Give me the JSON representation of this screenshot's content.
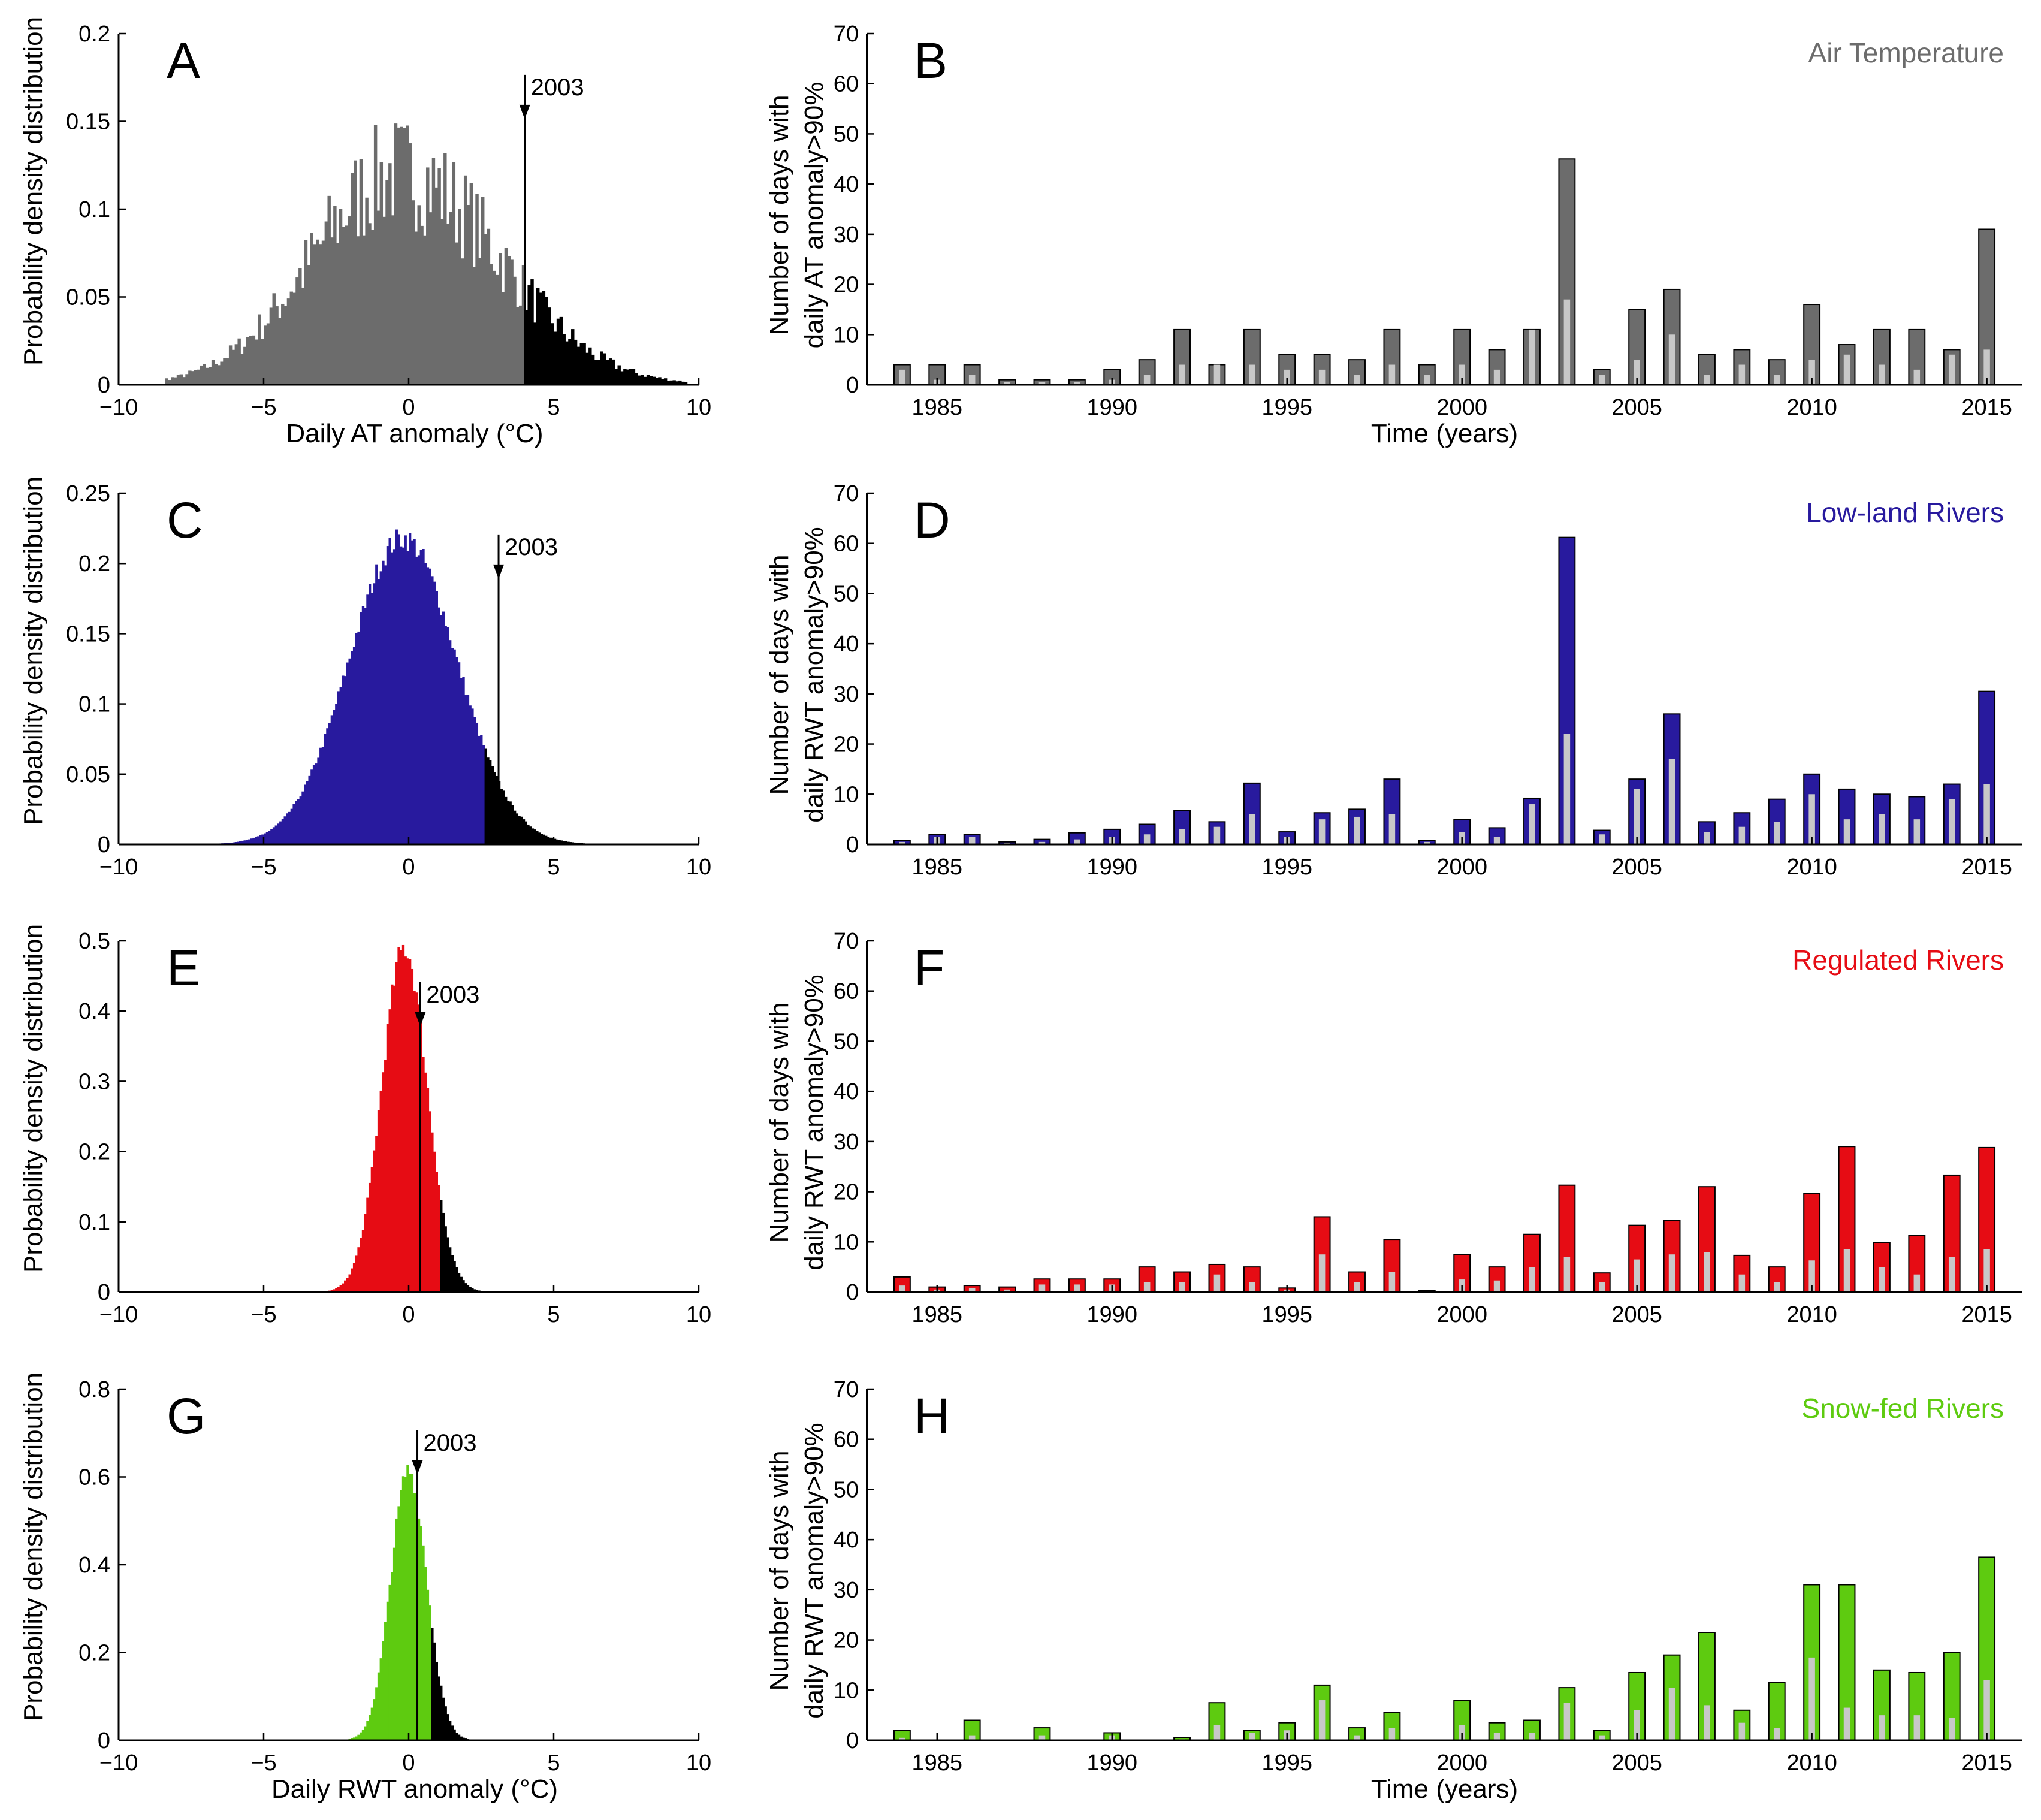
{
  "colors": {
    "air": "#6c6c6c",
    "lowland": "#281a9e",
    "regulated": "#e60c14",
    "snowfed": "#5ecb10",
    "tail": "#000000",
    "light_bar": "#c8c8c8"
  },
  "chart_data": [
    {
      "id": "A",
      "type": "bar",
      "panel_letter": "A",
      "ylabel": "Probability density distribution",
      "xlabel": "Daily AT anomaly (°C)",
      "xlim": [
        -10,
        10
      ],
      "ylim": [
        0,
        0.2
      ],
      "xticks": [
        -10,
        -5,
        0,
        5,
        10
      ],
      "xtick_labels": [
        "−10",
        "−5",
        "0",
        "5",
        "10"
      ],
      "yticks": [
        0,
        0.05,
        0.1,
        0.15,
        0.2
      ],
      "ytick_labels": [
        "0",
        "0.05",
        "0.1",
        "0.15",
        "0.2"
      ],
      "dist": "at",
      "center": -0.3,
      "peak": 0.155,
      "threshold": 4.0,
      "marker_x": 4.0,
      "marker_label": "2003",
      "color_key": "air"
    },
    {
      "id": "B",
      "type": "bar",
      "panel_letter": "B",
      "title": "Air Temperature",
      "ylabel": "Number of days with daily AT anomaly>90%",
      "ylabel_lines": [
        "Number of days with",
        "daily AT anomaly>90%"
      ],
      "xlabel": "Time (years)",
      "xlim": [
        1983,
        2016
      ],
      "ylim": [
        0,
        70
      ],
      "xticks": [
        1985,
        1990,
        1995,
        2000,
        2005,
        2010,
        2015
      ],
      "xtick_labels": [
        "1985",
        "1990",
        "1995",
        "2000",
        "2005",
        "2010",
        "2015"
      ],
      "yticks": [
        0,
        10,
        20,
        30,
        40,
        50,
        60,
        70
      ],
      "ytick_labels": [
        "0",
        "10",
        "20",
        "30",
        "40",
        "50",
        "60",
        "70"
      ],
      "color_key": "air",
      "years": [
        1984,
        1985,
        1986,
        1987,
        1988,
        1989,
        1990,
        1991,
        1992,
        1993,
        1994,
        1995,
        1996,
        1997,
        1998,
        1999,
        2000,
        2001,
        2002,
        2003,
        2004,
        2005,
        2006,
        2007,
        2008,
        2009,
        2010,
        2011,
        2012,
        2013,
        2014,
        2015
      ],
      "series": [
        {
          "name": "total",
          "values": [
            4,
            4,
            4,
            1,
            1,
            1,
            3,
            5,
            11,
            4,
            11,
            6,
            6,
            5,
            11,
            4,
            11,
            7,
            11,
            45,
            3,
            15,
            19,
            6,
            7,
            5,
            16,
            8,
            11,
            11,
            7,
            31
          ]
        },
        {
          "name": "subset",
          "values": [
            3,
            1,
            2,
            0.5,
            0.5,
            0.5,
            1,
            2,
            4,
            4,
            4,
            3,
            3,
            2,
            4,
            2,
            4,
            3,
            11,
            17,
            2,
            5,
            10,
            2,
            4,
            2,
            5,
            6,
            4,
            3,
            6,
            7
          ]
        }
      ]
    },
    {
      "id": "C",
      "type": "bar",
      "panel_letter": "C",
      "ylabel": "Probability density distribution",
      "xlabel": "",
      "xlim": [
        -10,
        10
      ],
      "ylim": [
        0,
        0.25
      ],
      "xticks": [
        -10,
        -5,
        0,
        5,
        10
      ],
      "xtick_labels": [
        "−10",
        "−5",
        "0",
        "5",
        "10"
      ],
      "yticks": [
        0,
        0.05,
        0.1,
        0.15,
        0.2,
        0.25
      ],
      "ytick_labels": [
        "0",
        "0.05",
        "0.1",
        "0.15",
        "0.2",
        "0.25"
      ],
      "dist": "gauss",
      "center": -0.2,
      "sigma": 1.85,
      "peak": 0.218,
      "threshold": 2.6,
      "marker_x": 3.1,
      "marker_label": "2003",
      "color_key": "lowland"
    },
    {
      "id": "D",
      "type": "bar",
      "panel_letter": "D",
      "title": "Low-land Rivers",
      "ylabel": "Number of days with daily RWT anomaly>90%",
      "ylabel_lines": [
        "Number of days with",
        "daily RWT anomaly>90%"
      ],
      "xlabel": "",
      "xlim": [
        1983,
        2016
      ],
      "ylim": [
        0,
        70
      ],
      "xticks": [
        1985,
        1990,
        1995,
        2000,
        2005,
        2010,
        2015
      ],
      "xtick_labels": [
        "1985",
        "1990",
        "1995",
        "2000",
        "2005",
        "2010",
        "2015"
      ],
      "yticks": [
        0,
        10,
        20,
        30,
        40,
        50,
        60,
        70
      ],
      "ytick_labels": [
        "0",
        "10",
        "20",
        "30",
        "40",
        "50",
        "60",
        "70"
      ],
      "color_key": "lowland",
      "years": [
        1984,
        1985,
        1986,
        1987,
        1988,
        1989,
        1990,
        1991,
        1992,
        1993,
        1994,
        1995,
        1996,
        1997,
        1998,
        1999,
        2000,
        2001,
        2002,
        2003,
        2004,
        2005,
        2006,
        2007,
        2008,
        2009,
        2010,
        2011,
        2012,
        2013,
        2014,
        2015
      ],
      "series": [
        {
          "name": "total",
          "values": [
            0.8,
            2,
            2,
            0.5,
            1,
            2.3,
            3,
            4,
            6.8,
            4.5,
            12.2,
            2.5,
            6.3,
            7,
            13,
            0.8,
            5,
            3.3,
            9.2,
            61.2,
            2.8,
            13,
            26,
            4.5,
            6.3,
            9,
            14,
            11,
            10,
            9.5,
            12,
            30.5
          ]
        },
        {
          "name": "subset",
          "values": [
            0.5,
            1.5,
            1.5,
            0.3,
            0.5,
            1,
            1.5,
            2,
            3,
            3.5,
            6,
            1.5,
            5,
            5.5,
            6,
            0.5,
            2.5,
            1.5,
            8,
            22,
            2,
            11,
            17,
            2.5,
            3.5,
            4.5,
            10,
            5,
            6,
            5,
            9,
            12
          ]
        }
      ]
    },
    {
      "id": "E",
      "type": "bar",
      "panel_letter": "E",
      "ylabel": "Probability density distribution",
      "xlabel": "",
      "xlim": [
        -10,
        10
      ],
      "ylim": [
        0,
        0.5
      ],
      "xticks": [
        -10,
        -5,
        0,
        5,
        10
      ],
      "xtick_labels": [
        "−10",
        "−5",
        "0",
        "5",
        "10"
      ],
      "yticks": [
        0,
        0.1,
        0.2,
        0.3,
        0.4,
        0.5
      ],
      "ytick_labels": [
        "0",
        "0.1",
        "0.2",
        "0.3",
        "0.4",
        "0.5"
      ],
      "dist": "gauss",
      "center": -0.15,
      "sigma": 0.78,
      "peak": 0.49,
      "threshold": 1.1,
      "marker_x": 0.4,
      "marker_label": "2003",
      "color_key": "regulated"
    },
    {
      "id": "F",
      "type": "bar",
      "panel_letter": "F",
      "title": "Regulated Rivers",
      "ylabel": "Number of days with daily RWT anomaly>90%",
      "ylabel_lines": [
        "Number of days with",
        "daily RWT anomaly>90%"
      ],
      "xlabel": "",
      "xlim": [
        1983,
        2016
      ],
      "ylim": [
        0,
        70
      ],
      "xticks": [
        1985,
        1990,
        1995,
        2000,
        2005,
        2010,
        2015
      ],
      "xtick_labels": [
        "1985",
        "1990",
        "1995",
        "2000",
        "2005",
        "2010",
        "2015"
      ],
      "yticks": [
        0,
        10,
        20,
        30,
        40,
        50,
        60,
        70
      ],
      "ytick_labels": [
        "0",
        "10",
        "20",
        "30",
        "40",
        "50",
        "60",
        "70"
      ],
      "color_key": "regulated",
      "years": [
        1984,
        1985,
        1986,
        1987,
        1988,
        1989,
        1990,
        1991,
        1992,
        1993,
        1994,
        1995,
        1996,
        1997,
        1998,
        1999,
        2000,
        2001,
        2002,
        2003,
        2004,
        2005,
        2006,
        2007,
        2008,
        2009,
        2010,
        2011,
        2012,
        2013,
        2014,
        2015
      ],
      "series": [
        {
          "name": "total",
          "values": [
            3,
            1,
            1.3,
            1,
            2.6,
            2.6,
            2.6,
            5,
            4,
            5.5,
            5,
            0.8,
            15,
            4,
            10.5,
            0.3,
            7.5,
            5,
            11.5,
            21.3,
            3.8,
            13.3,
            14.3,
            21,
            7.3,
            5,
            19.6,
            29,
            9.8,
            11.3,
            23.3,
            28.8
          ]
        },
        {
          "name": "subset",
          "values": [
            1.3,
            0.5,
            0.8,
            0.5,
            1.5,
            1.5,
            1.5,
            2,
            2,
            3.5,
            2,
            0.5,
            7.5,
            2,
            4,
            0.2,
            2.5,
            2.3,
            5,
            7,
            2,
            6.5,
            7.5,
            8,
            3.5,
            2,
            6.3,
            8.5,
            5,
            3.5,
            7,
            8.5
          ]
        }
      ]
    },
    {
      "id": "G",
      "type": "bar",
      "panel_letter": "G",
      "ylabel": "Probability density distribution",
      "xlabel": "Daily RWT anomaly (°C)",
      "xlim": [
        -10,
        10
      ],
      "ylim": [
        0,
        0.8
      ],
      "xticks": [
        -10,
        -5,
        0,
        5,
        10
      ],
      "xtick_labels": [
        "−10",
        "−5",
        "0",
        "5",
        "10"
      ],
      "yticks": [
        0,
        0.2,
        0.4,
        0.6,
        0.8
      ],
      "ytick_labels": [
        "0",
        "0.2",
        "0.4",
        "0.6",
        "0.8"
      ],
      "dist": "gauss",
      "center": 0.0,
      "sigma": 0.62,
      "peak": 0.615,
      "threshold": 0.8,
      "marker_x": 0.3,
      "marker_label": "2003",
      "color_key": "snowfed"
    },
    {
      "id": "H",
      "type": "bar",
      "panel_letter": "H",
      "title": "Snow-fed Rivers",
      "ylabel": "Number of days with daily RWT anomaly>90%",
      "ylabel_lines": [
        "Number of days with",
        "daily RWT anomaly>90%"
      ],
      "xlabel": "Time (years)",
      "xlim": [
        1983,
        2016
      ],
      "ylim": [
        0,
        70
      ],
      "xticks": [
        1985,
        1990,
        1995,
        2000,
        2005,
        2010,
        2015
      ],
      "xtick_labels": [
        "1985",
        "1990",
        "1995",
        "2000",
        "2005",
        "2010",
        "2015"
      ],
      "yticks": [
        0,
        10,
        20,
        30,
        40,
        50,
        60,
        70
      ],
      "ytick_labels": [
        "0",
        "10",
        "20",
        "30",
        "40",
        "50",
        "60",
        "70"
      ],
      "color_key": "snowfed",
      "years": [
        1984,
        1985,
        1986,
        1987,
        1988,
        1989,
        1990,
        1991,
        1992,
        1993,
        1994,
        1995,
        1996,
        1997,
        1998,
        1999,
        2000,
        2001,
        2002,
        2003,
        2004,
        2005,
        2006,
        2007,
        2008,
        2009,
        2010,
        2011,
        2012,
        2013,
        2014,
        2015
      ],
      "series": [
        {
          "name": "total",
          "values": [
            2,
            0,
            4,
            0,
            2.5,
            0,
            1.5,
            0,
            0.5,
            7.5,
            2,
            3.5,
            11,
            2.5,
            5.5,
            0,
            8,
            3.5,
            4,
            10.5,
            2,
            13.5,
            17,
            21.5,
            6,
            11.5,
            31,
            31,
            14,
            13.5,
            17.5,
            36.5
          ]
        },
        {
          "name": "subset",
          "values": [
            0.5,
            0,
            1,
            0,
            1,
            0,
            1,
            0,
            0.2,
            3,
            1.5,
            2,
            8,
            1,
            2.5,
            0,
            3,
            1.5,
            1.5,
            7.5,
            1,
            6,
            10.5,
            7,
            3.5,
            2.5,
            16.5,
            6.5,
            5,
            5,
            4.5,
            12
          ]
        }
      ]
    }
  ]
}
